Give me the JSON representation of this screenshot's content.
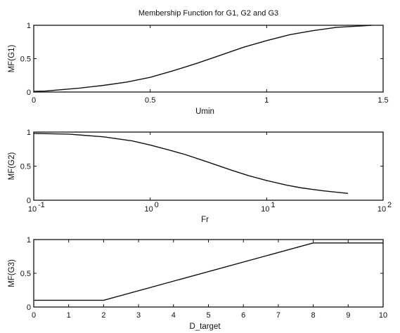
{
  "chart_data": [
    {
      "type": "line",
      "title": "Membership Function for G1, G2 and G3",
      "xlabel": "Umin",
      "ylabel": "MF(G1)",
      "xscale": "linear",
      "xlim": [
        0,
        1.5
      ],
      "ylim": [
        0,
        1
      ],
      "xticks": [
        0,
        0.5,
        1,
        1.5
      ],
      "xtick_labels": [
        "0",
        "0.5",
        "1",
        "1.5"
      ],
      "yticks": [
        0,
        0.5,
        1
      ],
      "ytick_labels": [
        "0",
        "0.5",
        "1"
      ],
      "grid": false,
      "series": [
        {
          "x": [
            0,
            0.05,
            0.1,
            0.2,
            0.3,
            0.4,
            0.5,
            0.6,
            0.7,
            0.8,
            0.9,
            1.0,
            1.1,
            1.2,
            1.3,
            1.4,
            1.45
          ],
          "y": [
            0.01,
            0.015,
            0.03,
            0.06,
            0.1,
            0.15,
            0.22,
            0.32,
            0.43,
            0.55,
            0.67,
            0.77,
            0.86,
            0.92,
            0.97,
            0.99,
            1.0
          ]
        }
      ]
    },
    {
      "type": "line",
      "title": "",
      "xlabel": "Fr",
      "ylabel": "MF(G2)",
      "xscale": "log",
      "xlim": [
        0.1,
        100
      ],
      "ylim": [
        0,
        1
      ],
      "xticks": [
        0.1,
        1,
        10,
        100
      ],
      "xtick_labels": [
        [
          "10",
          "-1"
        ],
        [
          "10",
          "0"
        ],
        [
          "10",
          "1"
        ],
        [
          "10",
          "2"
        ]
      ],
      "yticks": [
        0,
        0.5,
        1
      ],
      "ytick_labels": [
        "0",
        "0.5",
        "1"
      ],
      "grid": false,
      "series": [
        {
          "x": [
            0.1,
            0.2,
            0.4,
            0.7,
            1,
            1.5,
            2,
            3,
            5,
            7,
            10,
            15,
            20,
            30,
            50
          ],
          "y": [
            0.98,
            0.97,
            0.93,
            0.87,
            0.81,
            0.73,
            0.67,
            0.57,
            0.44,
            0.36,
            0.29,
            0.22,
            0.18,
            0.14,
            0.1
          ]
        }
      ]
    },
    {
      "type": "line",
      "title": "",
      "xlabel": "D_target",
      "ylabel": "MF(G3)",
      "xscale": "linear",
      "xlim": [
        0,
        10
      ],
      "ylim": [
        0,
        1
      ],
      "xticks": [
        0,
        1,
        2,
        3,
        4,
        5,
        6,
        7,
        8,
        9,
        10
      ],
      "xtick_labels": [
        "0",
        "1",
        "2",
        "3",
        "4",
        "5",
        "6",
        "7",
        "8",
        "9",
        "10"
      ],
      "yticks": [
        0,
        0.5,
        1
      ],
      "ytick_labels": [
        "0",
        "0.5",
        "1"
      ],
      "grid": false,
      "series": [
        {
          "x": [
            0,
            2,
            8,
            10
          ],
          "y": [
            0.1,
            0.1,
            0.95,
            0.95
          ]
        }
      ]
    }
  ]
}
